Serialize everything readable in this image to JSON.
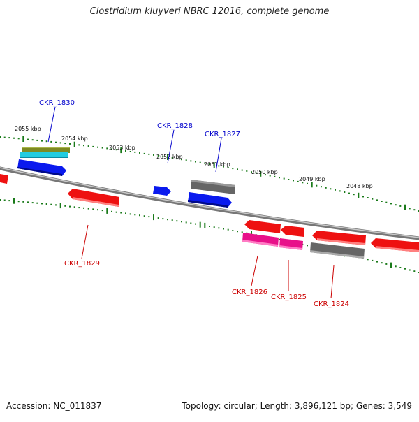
{
  "title": "Clostridium kluyveri NBRC 12016, complete genome",
  "footer": {
    "accession": "Accession: NC_011837",
    "summary": "Topology: circular; Length: 3,896,121 bp; Genes: 3,549"
  },
  "scale_labels": [
    "2055 kbp",
    "2054 kbp",
    "2053 kbp",
    "2052 kbp",
    "2051 kbp",
    "2050 kbp",
    "2049 kbp",
    "2048 kbp"
  ],
  "gene_labels": {
    "forward": [
      "CKR_1830",
      "CKR_1828",
      "CKR_1827"
    ],
    "reverse": [
      "CKR_1829",
      "CKR_1826",
      "CKR_1825",
      "CKR_1824"
    ]
  },
  "colors": {
    "forward_label": "#0000cc",
    "reverse_label": "#cc0000",
    "tick": "#1a7a1a",
    "backbone": "#888888",
    "red_feature": "#ee1111",
    "blue_feature": "#0a1aee",
    "grey_feature": "#666666",
    "magenta_feature": "#e8118a",
    "olive_feature": "#7d8a23",
    "cyan_feature": "#22cce0"
  }
}
